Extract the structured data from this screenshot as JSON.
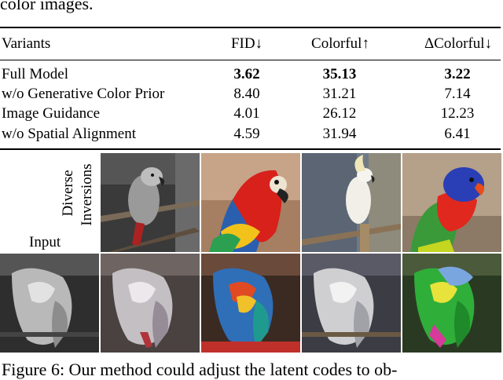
{
  "top_fragment": "color images.",
  "table": {
    "headers": [
      "Variants",
      "FID↓",
      "Colorful↑",
      "ΔColorful↓"
    ],
    "rows": [
      {
        "variant": "Full Model",
        "fid": "3.62",
        "colorful": "35.13",
        "dcolorful": "3.22",
        "bold": true
      },
      {
        "variant": "w/o Generative Color Prior",
        "fid": "8.40",
        "colorful": "31.21",
        "dcolorful": "7.14",
        "bold": false
      },
      {
        "variant": "Image Guidance",
        "fid": "4.01",
        "colorful": "26.12",
        "dcolorful": "12.23",
        "bold": false
      },
      {
        "variant": "w/o Spatial Alignment",
        "fid": "4.59",
        "colorful": "31.94",
        "dcolorful": "6.41",
        "bold": false
      }
    ]
  },
  "figure": {
    "label_diverse": "Diverse",
    "label_inversions": "Inversions",
    "label_input": "Input"
  },
  "caption_fragment": "Figure 6: Our method could adjust the latent codes to ob-"
}
